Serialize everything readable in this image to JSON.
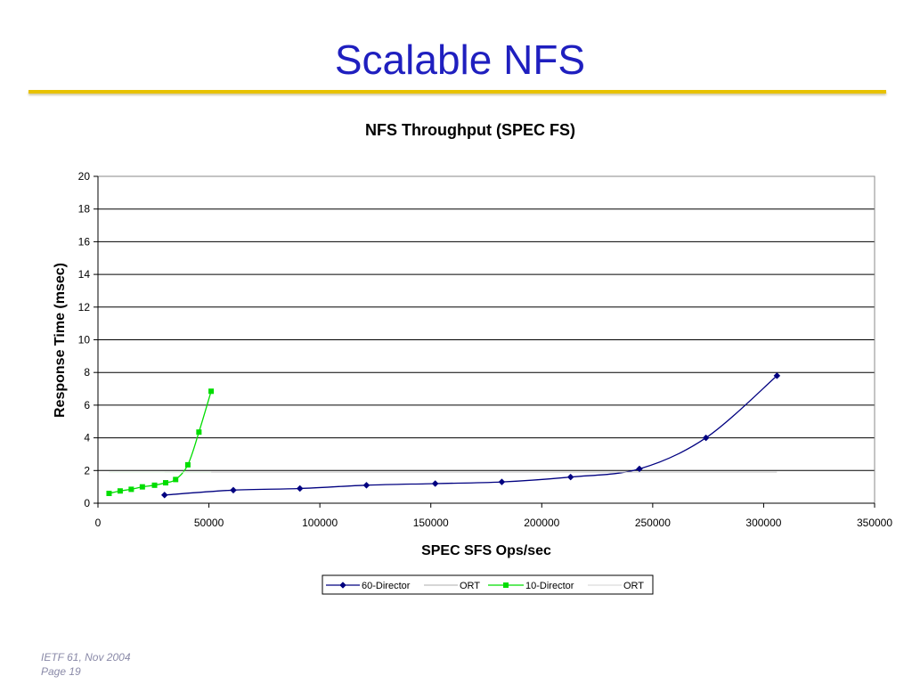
{
  "slide": {
    "title": "Scalable NFS",
    "footer_line1": "IETF 61, Nov 2004",
    "footer_line2": "Page 19"
  },
  "colors": {
    "title": "#1f1fbf",
    "rule": "#e8c200",
    "series_60_director": "#000080",
    "series_10_director": "#00dd00",
    "ort_60": "#c8c8c8",
    "ort_10": "#e4f5e4"
  },
  "chart_data": {
    "type": "line",
    "title": "NFS Throughput (SPEC FS)",
    "xlabel": "SPEC SFS Ops/sec",
    "ylabel": "Response Time (msec)",
    "xlim": [
      0,
      350000
    ],
    "ylim": [
      0,
      20
    ],
    "xticks": [
      0,
      50000,
      100000,
      150000,
      200000,
      250000,
      300000,
      350000
    ],
    "yticks": [
      0,
      2,
      4,
      6,
      8,
      10,
      12,
      14,
      16,
      18,
      20
    ],
    "grid": "horizontal",
    "legend_position": "bottom",
    "series": [
      {
        "name": "60-Director",
        "marker": "diamond",
        "x": [
          30000,
          61000,
          91000,
          121000,
          152000,
          182000,
          213000,
          244000,
          274000,
          306000
        ],
        "y": [
          0.5,
          0.8,
          0.9,
          1.1,
          1.2,
          1.3,
          1.6,
          2.1,
          4.0,
          7.8
        ]
      },
      {
        "name": "ORT",
        "marker": "none",
        "x": [
          30000,
          306000
        ],
        "y": [
          1.9,
          1.9
        ]
      },
      {
        "name": "10-Director",
        "marker": "square",
        "x": [
          5000,
          10000,
          15000,
          20000,
          25500,
          30500,
          35000,
          40500,
          45500,
          51000
        ],
        "y": [
          0.6,
          0.75,
          0.85,
          1.0,
          1.1,
          1.25,
          1.45,
          2.35,
          4.35,
          6.85
        ]
      },
      {
        "name": "ORT",
        "marker": "none",
        "x": [
          5000,
          51000
        ],
        "y": [
          1.9,
          1.9
        ]
      }
    ]
  }
}
